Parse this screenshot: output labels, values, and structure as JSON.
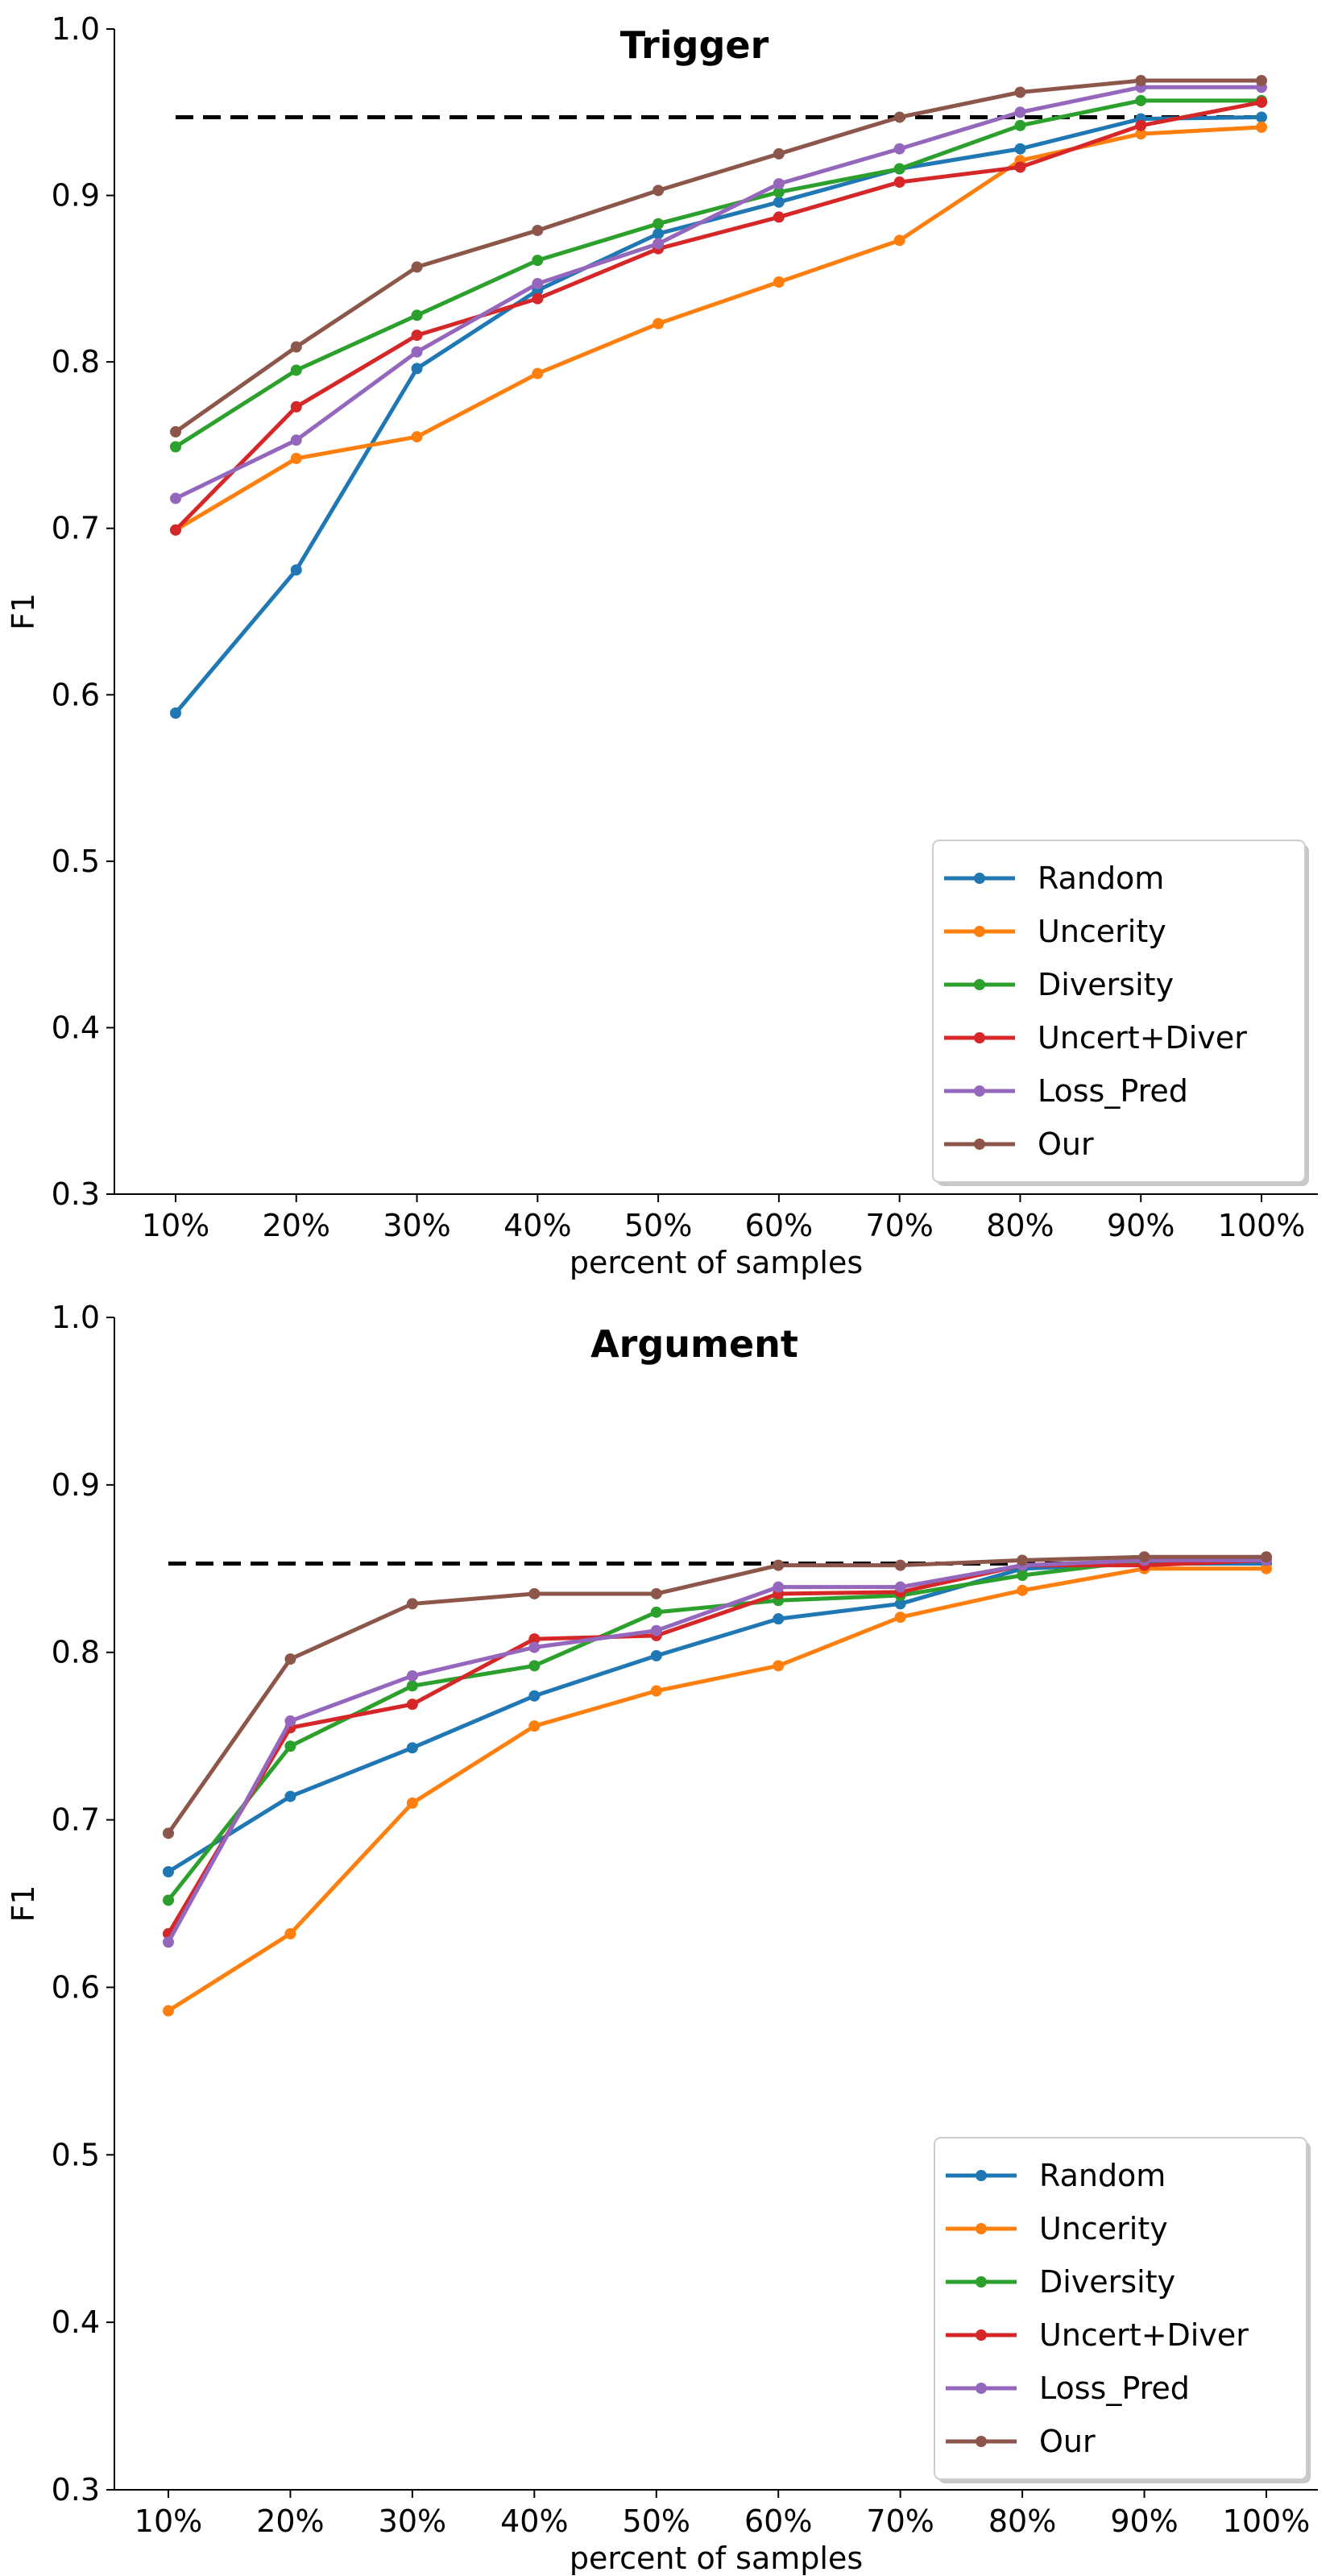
{
  "chart_data": [
    {
      "type": "line",
      "title": "Trigger",
      "xlabel": "percent of samples",
      "ylabel": "F1",
      "categories": [
        "10%",
        "20%",
        "30%",
        "40%",
        "50%",
        "60%",
        "70%",
        "80%",
        "90%",
        "100%"
      ],
      "ylim": [
        0.3,
        1.0
      ],
      "yticks": [
        "0.3",
        "0.4",
        "0.5",
        "0.6",
        "0.7",
        "0.8",
        "0.9",
        "1.0"
      ],
      "reference_line": 0.947,
      "legend_position": "lower-right",
      "series": [
        {
          "name": "Random",
          "color": "#1f77b4",
          "values": [
            0.589,
            0.675,
            0.796,
            0.843,
            0.877,
            0.896,
            0.916,
            0.928,
            0.946,
            0.947
          ]
        },
        {
          "name": "Uncerity",
          "color": "#ff7f0e",
          "values": [
            0.699,
            0.742,
            0.755,
            0.793,
            0.823,
            0.848,
            0.873,
            0.921,
            0.937,
            0.941
          ]
        },
        {
          "name": "Diversity",
          "color": "#2ca02c",
          "values": [
            0.749,
            0.795,
            0.828,
            0.861,
            0.883,
            0.902,
            0.916,
            0.942,
            0.957,
            0.957
          ]
        },
        {
          "name": "Uncert+Diver",
          "color": "#d62728",
          "values": [
            0.699,
            0.773,
            0.816,
            0.838,
            0.868,
            0.887,
            0.908,
            0.917,
            0.942,
            0.956
          ]
        },
        {
          "name": "Loss_Pred",
          "color": "#9467bd",
          "values": [
            0.718,
            0.753,
            0.806,
            0.847,
            0.871,
            0.907,
            0.928,
            0.95,
            0.965,
            0.965
          ]
        },
        {
          "name": "Our",
          "color": "#8c564b",
          "values": [
            0.758,
            0.809,
            0.857,
            0.879,
            0.903,
            0.925,
            0.947,
            0.962,
            0.969,
            0.969
          ]
        }
      ]
    },
    {
      "type": "line",
      "title": "Argument",
      "xlabel": "percent of samples",
      "ylabel": "F1",
      "categories": [
        "10%",
        "20%",
        "30%",
        "40%",
        "50%",
        "60%",
        "70%",
        "80%",
        "90%",
        "100%"
      ],
      "ylim": [
        0.3,
        1.0
      ],
      "yticks": [
        "0.3",
        "0.4",
        "0.5",
        "0.6",
        "0.7",
        "0.8",
        "0.9",
        "1.0"
      ],
      "reference_line": 0.853,
      "legend_position": "lower-right",
      "series": [
        {
          "name": "Random",
          "color": "#1f77b4",
          "values": [
            0.669,
            0.714,
            0.743,
            0.774,
            0.798,
            0.82,
            0.829,
            0.85,
            0.853,
            0.853
          ]
        },
        {
          "name": "Uncerity",
          "color": "#ff7f0e",
          "values": [
            0.586,
            0.632,
            0.71,
            0.756,
            0.777,
            0.792,
            0.821,
            0.837,
            0.85,
            0.85
          ]
        },
        {
          "name": "Diversity",
          "color": "#2ca02c",
          "values": [
            0.652,
            0.744,
            0.78,
            0.792,
            0.824,
            0.831,
            0.834,
            0.846,
            0.855,
            0.855
          ]
        },
        {
          "name": "Uncert+Diver",
          "color": "#d62728",
          "values": [
            0.632,
            0.755,
            0.769,
            0.808,
            0.81,
            0.835,
            0.836,
            0.852,
            0.852,
            0.855
          ]
        },
        {
          "name": "Loss_Pred",
          "color": "#9467bd",
          "values": [
            0.627,
            0.759,
            0.786,
            0.803,
            0.813,
            0.839,
            0.839,
            0.852,
            0.855,
            0.855
          ]
        },
        {
          "name": "Our",
          "color": "#8c564b",
          "values": [
            0.692,
            0.796,
            0.829,
            0.835,
            0.835,
            0.852,
            0.852,
            0.855,
            0.857,
            0.857
          ]
        }
      ]
    }
  ]
}
